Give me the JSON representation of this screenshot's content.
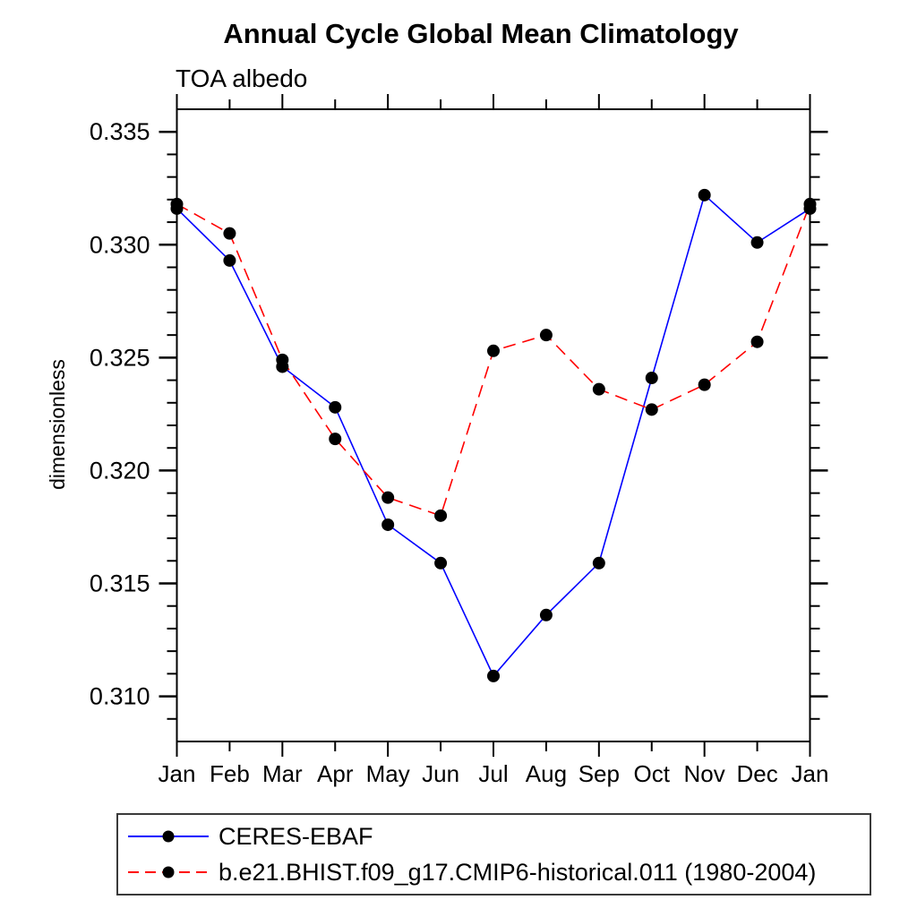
{
  "header": {
    "title": "Annual Cycle Global Mean Climatology",
    "subtitle": "TOA albedo"
  },
  "chart_data": {
    "type": "line",
    "title": "Annual Cycle Global Mean Climatology",
    "subtitle": "TOA albedo",
    "xlabel": "",
    "ylabel": "dimensionless",
    "categories": [
      "Jan",
      "Feb",
      "Mar",
      "Apr",
      "May",
      "Jun",
      "Jul",
      "Aug",
      "Sep",
      "Oct",
      "Nov",
      "Dec",
      "Jan"
    ],
    "ylim": [
      0.308,
      0.336
    ],
    "yticks_major": [
      0.31,
      0.315,
      0.32,
      0.325,
      0.33,
      0.335
    ],
    "ytick_minor_step": 0.001,
    "ytick_label_decimals": 3,
    "grid": false,
    "axis_color": "#000000",
    "marker_color": "#000000",
    "legend_position": "bottom-left-box",
    "series": [
      {
        "name": "CERES-EBAF",
        "color": "#0000ff",
        "style": "solid",
        "marker": "circle",
        "values": [
          0.3316,
          0.3293,
          0.3246,
          0.3228,
          0.3176,
          0.3159,
          0.3109,
          0.3136,
          0.3159,
          0.3241,
          0.3322,
          0.3301,
          0.3316
        ]
      },
      {
        "name": "b.e21.BHIST.f09_g17.CMIP6-historical.011 (1980-2004)",
        "color": "#ff0000",
        "style": "dashed",
        "marker": "circle",
        "values": [
          0.3318,
          0.3305,
          0.3249,
          0.3214,
          0.3188,
          0.318,
          0.3253,
          0.326,
          0.3236,
          0.3227,
          0.3238,
          0.3257,
          0.3318
        ]
      }
    ]
  }
}
